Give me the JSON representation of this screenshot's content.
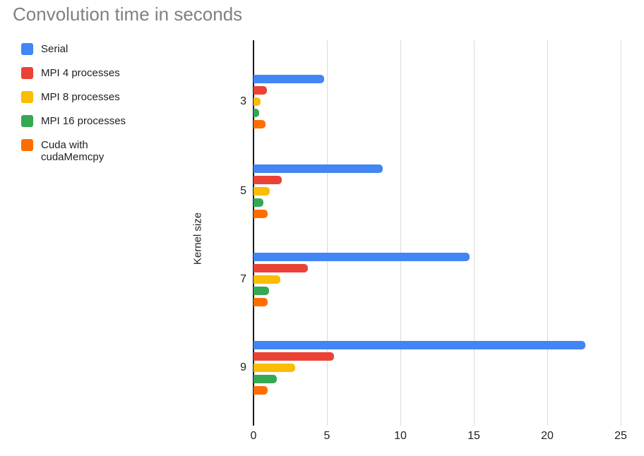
{
  "chart_data": {
    "type": "bar",
    "orientation": "horizontal",
    "title": "Convolution time in seconds",
    "xlabel": "",
    "ylabel": "Kernel size",
    "categories": [
      "3",
      "5",
      "7",
      "9"
    ],
    "series": [
      {
        "name": "Serial",
        "color": "#4285F4",
        "values": [
          4.8,
          8.8,
          14.7,
          22.6
        ]
      },
      {
        "name": "MPI 4 processes",
        "color": "#EA4335",
        "values": [
          0.9,
          1.9,
          3.7,
          5.5
        ]
      },
      {
        "name": "MPI 8 processes",
        "color": "#FBBC04",
        "values": [
          0.5,
          1.1,
          1.85,
          2.85
        ]
      },
      {
        "name": "MPI 16 processes",
        "color": "#34A853",
        "values": [
          0.4,
          0.65,
          1.05,
          1.6
        ]
      },
      {
        "name": "Cuda with cudaMemcpy",
        "color": "#FF6D01",
        "values": [
          0.8,
          0.95,
          0.95,
          0.95
        ]
      }
    ],
    "xlim": [
      0,
      25
    ],
    "xticks": [
      0,
      5,
      10,
      15,
      20,
      25
    ],
    "grid": true,
    "legend_position": "top-left",
    "title_color": "#808080",
    "gridline_color": "#dadada",
    "axis_line_color": "#1a1a1a",
    "tick_label_color": "#212121"
  }
}
